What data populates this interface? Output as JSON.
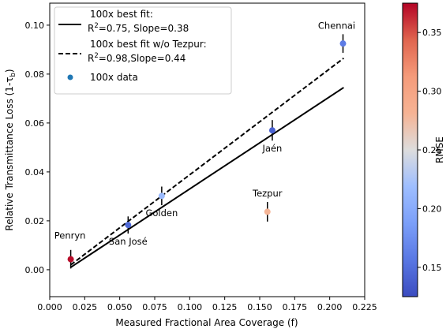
{
  "chart_data": {
    "type": "scatter",
    "xlabel": "Measured Fractional Area Coverage (f)",
    "ylabel_main": "Relative Transmittance Loss (1-τ",
    "ylabel_sub": "b",
    "ylabel_close": ")",
    "xlim": [
      0.0,
      0.225
    ],
    "ylim": [
      -0.011,
      0.109
    ],
    "xticks": [
      0.0,
      0.025,
      0.05,
      0.075,
      0.1,
      0.125,
      0.15,
      0.175,
      0.2,
      0.225
    ],
    "xtick_labels": [
      "0.000",
      "0.025",
      "0.050",
      "0.075",
      "0.100",
      "0.125",
      "0.150",
      "0.175",
      "0.200",
      "0.225"
    ],
    "yticks": [
      0.0,
      0.02,
      0.04,
      0.06,
      0.08,
      0.1
    ],
    "ytick_labels": [
      "0.00",
      "0.02",
      "0.04",
      "0.06",
      "0.08",
      "0.10"
    ],
    "grid": false,
    "legend_position": "top-left",
    "legend": [
      {
        "style": "solid",
        "line1": "100x best fit:",
        "line2_prefix": "R",
        "line2_sup": "2",
        "line2_rest": "=0.75, Slope=0.38"
      },
      {
        "style": "dashed",
        "line1": "100x best fit w/o Tezpur:",
        "line2_prefix": "R",
        "line2_sup": "2",
        "line2_rest": "=0.98,Slope=0.44"
      },
      {
        "style": "marker",
        "line1": "100x data"
      }
    ],
    "fit_lines": [
      {
        "style": "solid",
        "x": [
          0.015,
          0.21
        ],
        "y": [
          0.001,
          0.0745
        ]
      },
      {
        "style": "dashed",
        "x": [
          0.015,
          0.21
        ],
        "y": [
          0.002,
          0.0865
        ]
      }
    ],
    "points": [
      {
        "label": "Penryn",
        "x": 0.015,
        "y": 0.0043,
        "yerr": 0.0038,
        "rmse": 0.372,
        "label_pos": "above"
      },
      {
        "label": "San José",
        "x": 0.056,
        "y": 0.0183,
        "yerr": 0.0035,
        "rmse": 0.145,
        "label_pos": "below"
      },
      {
        "label": "Golden",
        "x": 0.08,
        "y": 0.0302,
        "yerr": 0.0038,
        "rmse": 0.215,
        "label_pos": "below"
      },
      {
        "label": "Tezpur",
        "x": 0.1555,
        "y": 0.0237,
        "yerr": 0.004,
        "rmse": 0.28,
        "label_pos": "above"
      },
      {
        "label": "Jaén",
        "x": 0.159,
        "y": 0.057,
        "yerr": 0.0042,
        "rmse": 0.14,
        "label_pos": "below"
      },
      {
        "label": "Chennai",
        "x": 0.2095,
        "y": 0.0925,
        "yerr": 0.0038,
        "rmse": 0.16,
        "label_pos": "above"
      }
    ],
    "colorbar": {
      "label": "RMSE",
      "min": 0.125,
      "max": 0.375,
      "ticks": [
        0.15,
        0.2,
        0.25,
        0.3,
        0.35
      ],
      "tick_labels": [
        "0.15",
        "0.20",
        "0.25",
        "0.30",
        "0.35"
      ],
      "colormap": "coolwarm"
    }
  }
}
